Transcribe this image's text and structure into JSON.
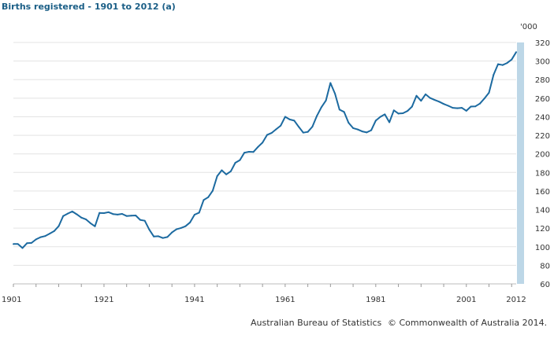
{
  "chart_data": {
    "type": "line",
    "title": "Births registered - 1901 to 2012 (a)",
    "ylabel": "'000",
    "xlim": [
      1901,
      2012
    ],
    "ylim": [
      60,
      320
    ],
    "yticks": [
      60,
      80,
      100,
      120,
      140,
      160,
      180,
      200,
      220,
      240,
      260,
      280,
      300,
      320
    ],
    "xticks": [
      1901,
      1921,
      1941,
      1961,
      1981,
      2001,
      2012
    ],
    "grid": true,
    "colors": {
      "line": "#1c6aa0",
      "axis_bar": "#bdd7e7"
    },
    "series": [
      {
        "x": [
          1901,
          1902,
          1903,
          1904,
          1905,
          1906,
          1907,
          1908,
          1909,
          1910,
          1911,
          1912,
          1913,
          1914,
          1915,
          1916,
          1917,
          1918,
          1919,
          1920,
          1921,
          1922,
          1923,
          1924,
          1925,
          1926,
          1927,
          1928,
          1929,
          1930,
          1931,
          1932,
          1933,
          1934,
          1935,
          1936,
          1937,
          1938,
          1939,
          1940,
          1941,
          1942,
          1943,
          1944,
          1945,
          1946,
          1947,
          1948,
          1949,
          1950,
          1951,
          1952,
          1953,
          1954,
          1955,
          1956,
          1957,
          1958,
          1959,
          1960,
          1961,
          1962,
          1963,
          1964,
          1965,
          1966,
          1967,
          1968,
          1969,
          1970,
          1971,
          1972,
          1973,
          1974,
          1975,
          1976,
          1977,
          1978,
          1979,
          1980,
          1981,
          1982,
          1983,
          1984,
          1985,
          1986,
          1987,
          1988,
          1989,
          1990,
          1991,
          1992,
          1993,
          1994,
          1995,
          1996,
          1997,
          1998,
          1999,
          2000,
          2001,
          2002,
          2003,
          2004,
          2005,
          2006,
          2007,
          2008,
          2009,
          2010,
          2011,
          2012
        ],
        "values": [
          102.9,
          102.9,
          98.6,
          103.8,
          104.1,
          107.9,
          110.3,
          111.5,
          114.1,
          116.8,
          122.2,
          133.1,
          135.7,
          137.98,
          134.9,
          131.4,
          129.5,
          125.4,
          122.0,
          136.4,
          136.2,
          137.2,
          135.2,
          134.6,
          135.4,
          133.1,
          133.5,
          133.7,
          128.9,
          128.0,
          118.5,
          111.0,
          111.3,
          109.4,
          110.5,
          115.4,
          118.8,
          120.2,
          122.1,
          126.2,
          134.5,
          136.7,
          150.3,
          153.3,
          160.3,
          176.0,
          182.4,
          177.9,
          181.3,
          190.4,
          193.3,
          201.3,
          202.3,
          202.1,
          207.5,
          212.1,
          220.4,
          222.5,
          226.5,
          230.3,
          240.0,
          237.1,
          235.8,
          229.1,
          222.9,
          223.7,
          229.3,
          240.9,
          250.2,
          257.5,
          276.4,
          264.9,
          247.7,
          245.2,
          233.5,
          227.8,
          226.3,
          224.2,
          223.1,
          225.5,
          235.8,
          239.9,
          242.6,
          234.0,
          246.9,
          243.4,
          243.8,
          246.2,
          250.9,
          262.6,
          257.2,
          264.2,
          260.2,
          258.1,
          256.2,
          253.8,
          251.8,
          249.6,
          249.2,
          249.6,
          246.4,
          251.0,
          251.2,
          254.2,
          259.8,
          265.9,
          285.2,
          296.6,
          295.7,
          297.9,
          301.6,
          309.6
        ]
      }
    ]
  },
  "footer": {
    "source": "Australian Bureau of Statistics",
    "copyright": "© Commonwealth of Australia 2014."
  }
}
